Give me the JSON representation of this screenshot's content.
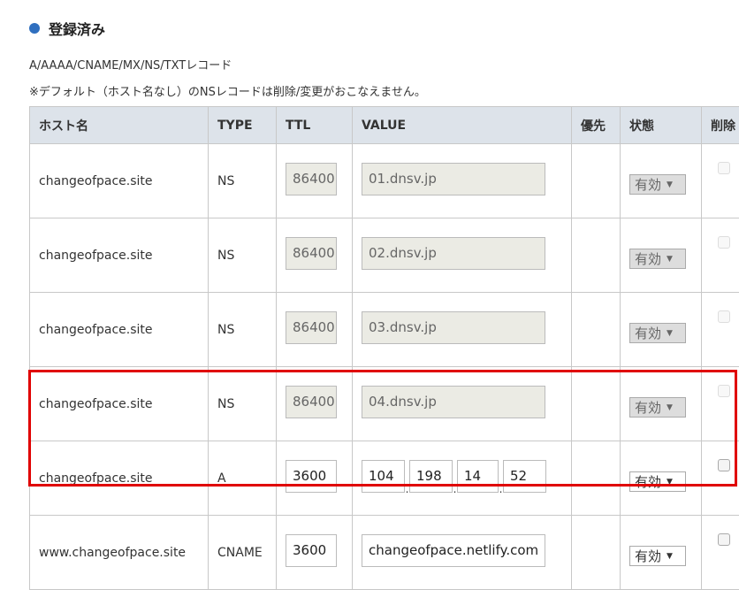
{
  "section_title": "登録済み",
  "record_types": "A/AAAA/CNAME/MX/NS/TXTレコード",
  "note": "※デフォルト（ホスト名なし）のNSレコードは削除/変更がおこなえません。",
  "headers": {
    "host": "ホスト名",
    "type": "TYPE",
    "ttl": "TTL",
    "value": "VALUE",
    "priority": "優先",
    "status": "状態",
    "delete": "削除"
  },
  "rows": [
    {
      "host": "changeofpace.site",
      "type": "NS",
      "ttl": "86400",
      "value": "01.dnsv.jp",
      "status": "有効",
      "disabled": true
    },
    {
      "host": "changeofpace.site",
      "type": "NS",
      "ttl": "86400",
      "value": "02.dnsv.jp",
      "status": "有効",
      "disabled": true
    },
    {
      "host": "changeofpace.site",
      "type": "NS",
      "ttl": "86400",
      "value": "03.dnsv.jp",
      "status": "有効",
      "disabled": true
    },
    {
      "host": "changeofpace.site",
      "type": "NS",
      "ttl": "86400",
      "value": "04.dnsv.jp",
      "status": "有効",
      "disabled": true
    },
    {
      "host": "changeofpace.site",
      "type": "A",
      "ttl": "3600",
      "ip": [
        "104",
        "198",
        "14",
        "52"
      ],
      "status": "有効",
      "disabled": false
    },
    {
      "host": "www.changeofpace.site",
      "type": "CNAME",
      "ttl": "3600",
      "value": "changeofpace.netlify.com",
      "status": "有効",
      "disabled": false
    }
  ],
  "highlight_color": "#e00000"
}
